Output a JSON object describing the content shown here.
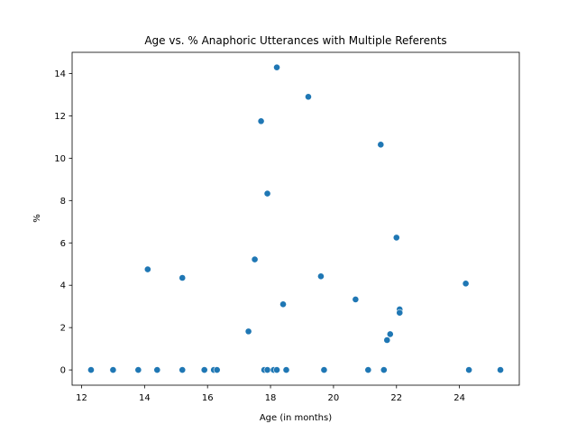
{
  "chart_data": {
    "type": "scatter",
    "title": "Age vs. % Anaphoric Utterances with Multiple Referents",
    "xlabel": "Age (in months)",
    "ylabel": "%",
    "xlim": [
      11.7,
      25.9
    ],
    "ylim": [
      -0.72,
      15.0
    ],
    "xticks": [
      12,
      14,
      16,
      18,
      20,
      22,
      24
    ],
    "yticks": [
      0,
      2,
      4,
      6,
      8,
      10,
      12,
      14
    ],
    "grid": false,
    "marker_color": "#1f77b4",
    "points": [
      {
        "x": 12.3,
        "y": 0
      },
      {
        "x": 13.0,
        "y": 0
      },
      {
        "x": 13.8,
        "y": 0
      },
      {
        "x": 14.4,
        "y": 0
      },
      {
        "x": 15.2,
        "y": 0
      },
      {
        "x": 15.9,
        "y": 0
      },
      {
        "x": 16.2,
        "y": 0
      },
      {
        "x": 16.3,
        "y": 0
      },
      {
        "x": 17.8,
        "y": 0
      },
      {
        "x": 17.9,
        "y": 0
      },
      {
        "x": 18.1,
        "y": 0
      },
      {
        "x": 18.2,
        "y": 0
      },
      {
        "x": 18.5,
        "y": 0
      },
      {
        "x": 19.7,
        "y": 0
      },
      {
        "x": 21.1,
        "y": 0
      },
      {
        "x": 21.6,
        "y": 0
      },
      {
        "x": 24.3,
        "y": 0
      },
      {
        "x": 25.3,
        "y": 0
      },
      {
        "x": 14.1,
        "y": 4.75
      },
      {
        "x": 15.2,
        "y": 4.35
      },
      {
        "x": 17.3,
        "y": 1.82
      },
      {
        "x": 17.5,
        "y": 5.22
      },
      {
        "x": 17.7,
        "y": 11.75
      },
      {
        "x": 17.9,
        "y": 8.33
      },
      {
        "x": 18.2,
        "y": 14.29
      },
      {
        "x": 18.4,
        "y": 3.1
      },
      {
        "x": 19.2,
        "y": 12.9
      },
      {
        "x": 19.6,
        "y": 4.42
      },
      {
        "x": 20.7,
        "y": 3.33
      },
      {
        "x": 21.5,
        "y": 10.64
      },
      {
        "x": 21.7,
        "y": 1.41
      },
      {
        "x": 21.8,
        "y": 1.69
      },
      {
        "x": 22.0,
        "y": 6.25
      },
      {
        "x": 22.1,
        "y": 2.86
      },
      {
        "x": 22.1,
        "y": 2.7
      },
      {
        "x": 24.2,
        "y": 4.08
      }
    ]
  }
}
